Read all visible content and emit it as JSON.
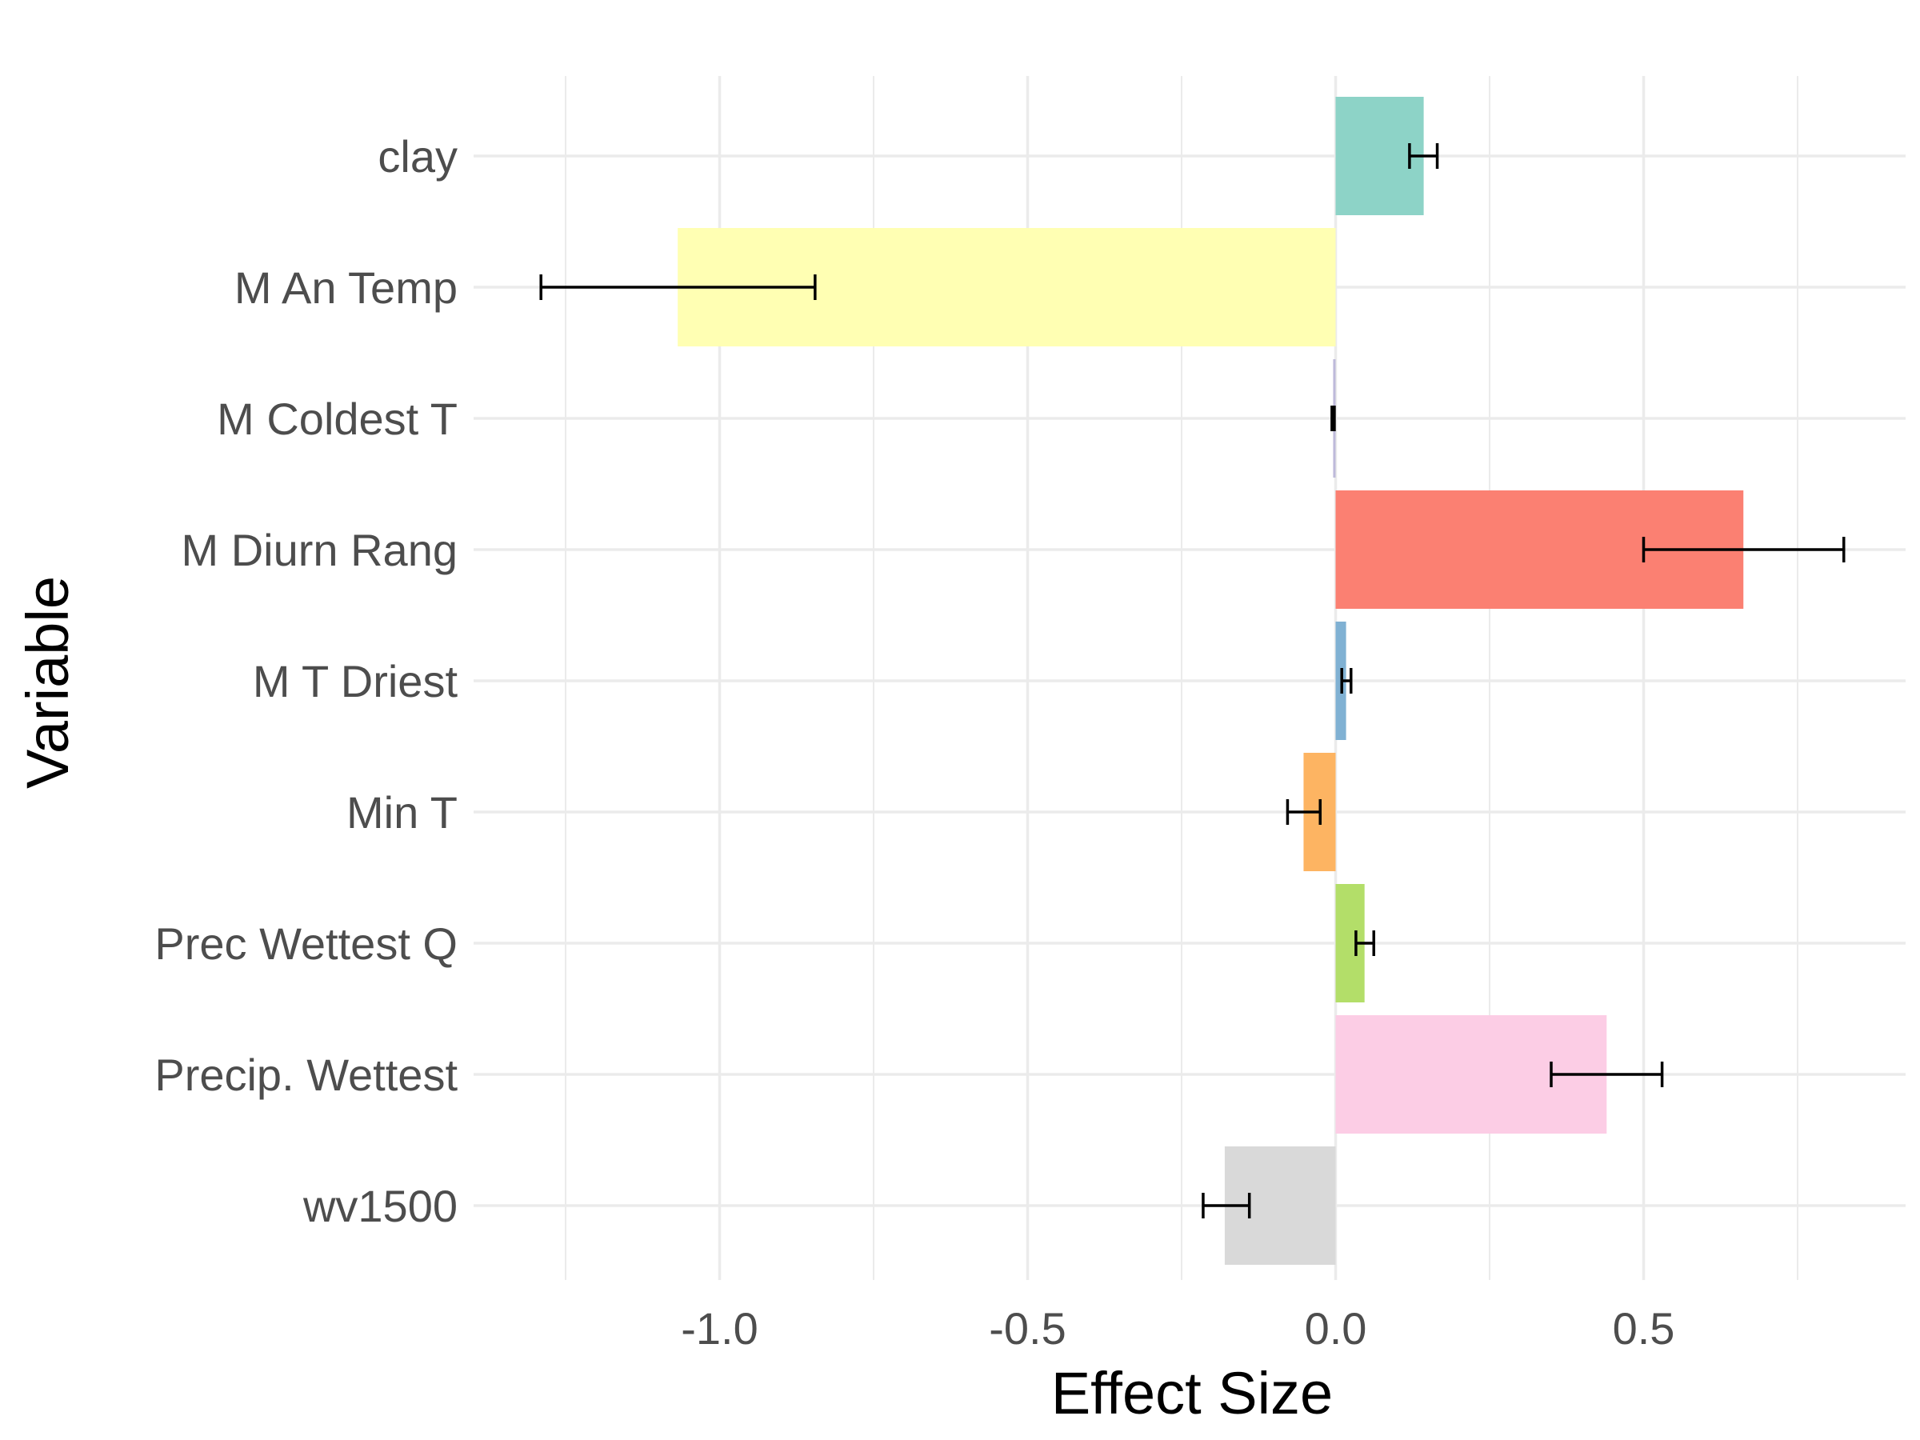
{
  "chart_data": {
    "type": "bar",
    "orientation": "horizontal",
    "xlabel": "Effect Size",
    "ylabel": "Variable",
    "xlim": [
      -1.4,
      0.93
    ],
    "x_ticks": [
      -1.0,
      -0.5,
      0.0,
      0.5
    ],
    "x_tick_labels": [
      "-1.0",
      "-0.5",
      "0.0",
      "0.5"
    ],
    "x_minor_grid": [
      -1.25,
      -0.75,
      -0.25,
      0.25,
      0.75
    ],
    "grid": true,
    "legend": "none",
    "categories": [
      "wv1500",
      "Precip. Wettest",
      "Prec Wettest Q",
      "Min T",
      "M T Driest",
      "M Diurn Rang",
      "M Coldest T",
      "M An Temp",
      "clay"
    ],
    "values": [
      -0.18,
      0.44,
      0.047,
      -0.052,
      0.017,
      0.662,
      -0.004,
      -1.068,
      0.143
    ],
    "error_low": [
      -0.215,
      0.35,
      0.033,
      -0.078,
      0.01,
      0.5,
      -0.006,
      -1.29,
      0.12
    ],
    "error_high": [
      -0.14,
      0.53,
      0.062,
      -0.025,
      0.025,
      0.825,
      -0.002,
      -0.845,
      0.165
    ],
    "colors": [
      "#d9d9d9",
      "#fccde5",
      "#b3de69",
      "#fdb462",
      "#80b1d3",
      "#fb8072",
      "#bebada",
      "#ffffb3",
      "#8dd3c7"
    ]
  }
}
